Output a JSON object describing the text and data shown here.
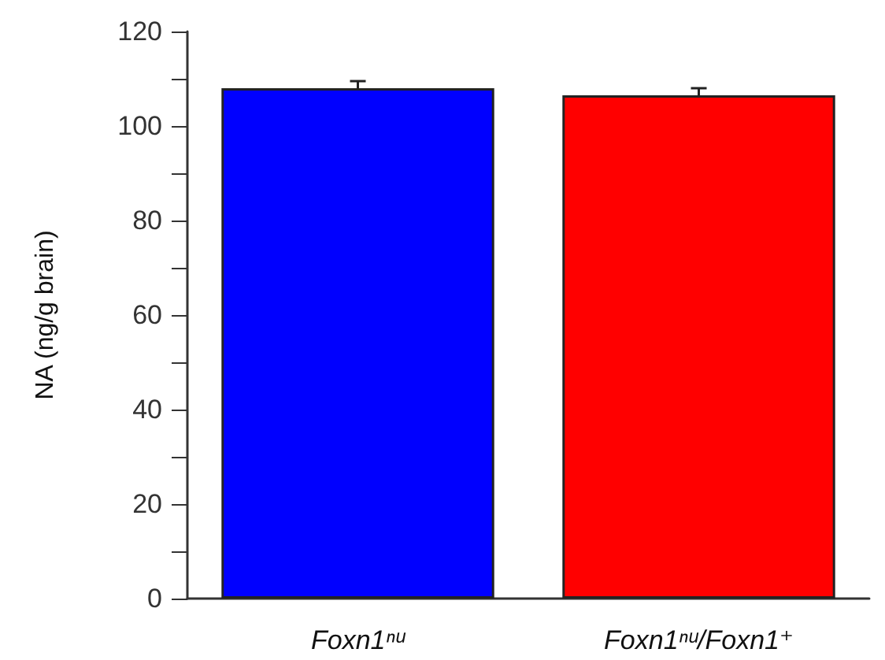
{
  "chart_data": {
    "type": "bar",
    "ylabel": "NA (ng/g brain)",
    "categories": [
      "Foxn1ⁿᵘ",
      "Foxn1ⁿᵘ/Foxn1⁺"
    ],
    "values": [
      108,
      106.5
    ],
    "errors": [
      1.5,
      1.5
    ],
    "colors": [
      "#0000ff",
      "#ff0000"
    ],
    "ylim": [
      0,
      120
    ],
    "yticks": [
      0,
      {
        "value": 10,
        "label": null
      },
      20,
      {
        "value": 30,
        "label": null
      },
      40,
      {
        "value": 50,
        "label": null
      },
      60,
      {
        "value": 70,
        "label": null
      },
      80,
      {
        "value": 90,
        "label": null
      },
      100,
      {
        "value": 110,
        "label": null
      },
      120
    ],
    "grid": false
  }
}
